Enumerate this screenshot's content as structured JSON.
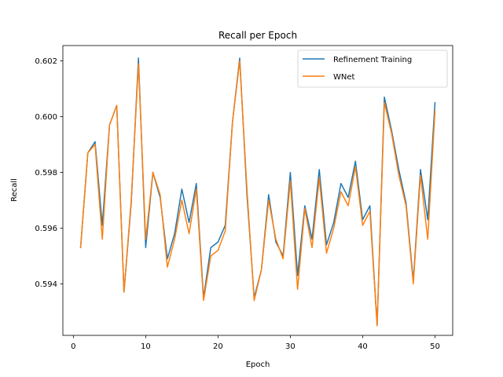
{
  "chart_data": {
    "type": "line",
    "title": "Recall per Epoch",
    "xlabel": "Epoch",
    "ylabel": "Recall",
    "xlim": [
      -1.45,
      52.45
    ],
    "ylim": [
      0.59215,
      0.60255
    ],
    "xticks": [
      0,
      10,
      20,
      30,
      40,
      50
    ],
    "yticks": [
      0.594,
      0.596,
      0.598,
      0.6,
      0.602
    ],
    "ytick_labels": [
      "0.594",
      "0.596",
      "0.598",
      "0.600",
      "0.602"
    ],
    "grid": false,
    "legend_position": "upper right",
    "x": [
      1,
      2,
      3,
      4,
      5,
      6,
      7,
      8,
      9,
      10,
      11,
      12,
      13,
      14,
      15,
      16,
      17,
      18,
      19,
      20,
      21,
      22,
      23,
      24,
      25,
      26,
      27,
      28,
      29,
      30,
      31,
      32,
      33,
      34,
      35,
      36,
      37,
      38,
      39,
      40,
      41,
      42,
      43,
      44,
      45,
      46,
      47,
      48,
      49,
      50
    ],
    "series": [
      {
        "name": "Refinement Training",
        "color": "#1f77b4",
        "values": [
          0.5953,
          0.5987,
          0.5991,
          0.5961,
          0.5997,
          0.6004,
          0.5937,
          0.5969,
          0.6021,
          0.5953,
          0.598,
          0.5971,
          0.5949,
          0.5958,
          0.5974,
          0.5962,
          0.5976,
          0.5935,
          0.5953,
          0.5955,
          0.5961,
          0.5998,
          0.6021,
          0.5972,
          0.5935,
          0.5945,
          0.5972,
          0.5955,
          0.595,
          0.598,
          0.5943,
          0.5968,
          0.5956,
          0.5981,
          0.5954,
          0.5962,
          0.5976,
          0.5971,
          0.5984,
          0.5963,
          0.5968,
          0.5925,
          0.6007,
          0.5995,
          0.5981,
          0.5969,
          0.5941,
          0.5981,
          0.5963,
          0.6005
        ]
      },
      {
        "name": "WNet",
        "color": "#ff7f0e",
        "values": [
          0.5953,
          0.5987,
          0.599,
          0.5956,
          0.5997,
          0.6004,
          0.5937,
          0.597,
          0.6019,
          0.5956,
          0.598,
          0.5972,
          0.5946,
          0.5956,
          0.597,
          0.5958,
          0.5974,
          0.5934,
          0.595,
          0.5952,
          0.5959,
          0.5998,
          0.602,
          0.5974,
          0.5934,
          0.5945,
          0.597,
          0.5956,
          0.5949,
          0.5977,
          0.5938,
          0.5967,
          0.5953,
          0.5978,
          0.5951,
          0.596,
          0.5973,
          0.5968,
          0.5982,
          0.5961,
          0.5966,
          0.5925,
          0.6005,
          0.5994,
          0.5979,
          0.5968,
          0.594,
          0.5979,
          0.5956,
          0.6002
        ]
      }
    ]
  }
}
